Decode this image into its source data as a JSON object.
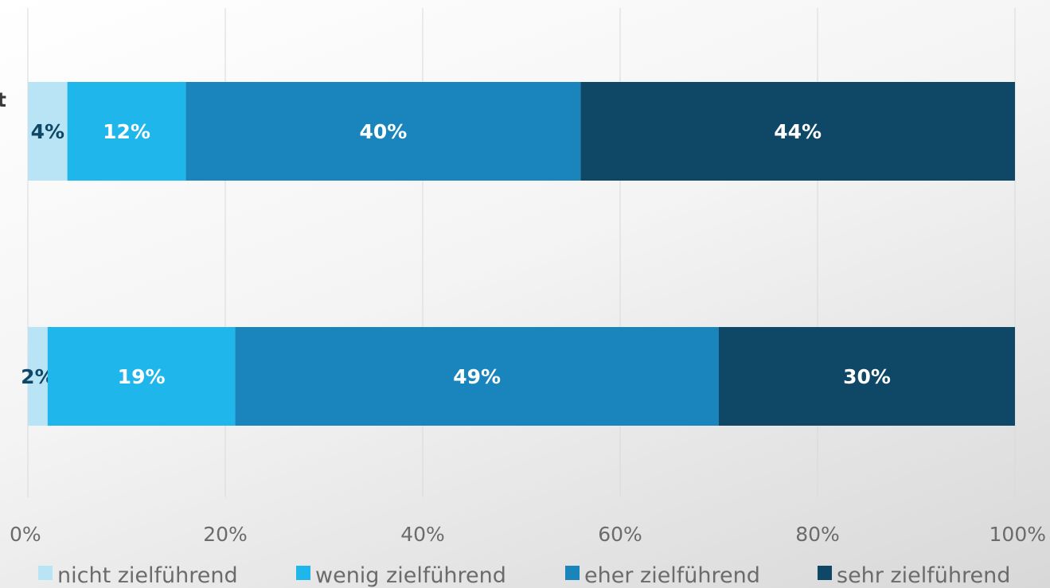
{
  "chart_data": {
    "type": "bar",
    "orientation": "horizontal",
    "stacked": true,
    "normalized": true,
    "title": "",
    "xlabel": "",
    "ylabel": "",
    "categories": [
      "t",
      ""
    ],
    "xlim": [
      0,
      100
    ],
    "x_ticks": [
      "0%",
      "20%",
      "40%",
      "60%",
      "80%",
      "100%"
    ],
    "grid": true,
    "legend": "bottom",
    "series": [
      {
        "name": "nicht zielführend",
        "color": "#b8e4f6",
        "values": [
          4,
          2
        ],
        "labels": [
          "4%",
          "2%"
        ],
        "label_color": "#0f4766"
      },
      {
        "name": "wenig zielführend",
        "color": "#1fb6ec",
        "values": [
          12,
          19
        ],
        "labels": [
          "12%",
          "19%"
        ],
        "label_color": "#ffffff"
      },
      {
        "name": "eher zielführend",
        "color": "#1a85bd",
        "values": [
          40,
          49
        ],
        "labels": [
          "40%",
          "49%"
        ],
        "label_color": "#ffffff"
      },
      {
        "name": "sehr zielführend",
        "color": "#0f4766",
        "values": [
          44,
          30
        ],
        "labels": [
          "44%",
          "30%"
        ],
        "label_color": "#ffffff"
      }
    ]
  }
}
